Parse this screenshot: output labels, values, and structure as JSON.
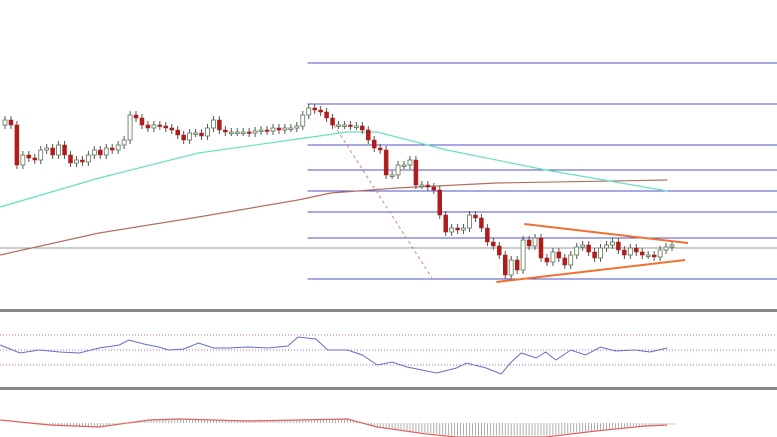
{
  "chart_data": {
    "type": "candlestick",
    "title": "",
    "xlabel": "",
    "ylabel": "",
    "grid": false,
    "colors": {
      "up": "#8fae8f",
      "down": "#b01c1c",
      "wick": "#555555",
      "ma_fast": "#66e0c0",
      "ma_slow": "#b07060",
      "fib": "#5050c8",
      "triangle": "#f07030",
      "fib_trend": "#e08080",
      "reference": "#999999",
      "rsi": "#6a6ac8",
      "rsi_levels": "#c060c0",
      "macd_signal": "#e06060",
      "macd_hist": "#999999",
      "separator": "#888888"
    },
    "price_range": [
      0,
      300
    ],
    "closes": [
      180,
      175,
      135,
      145,
      142,
      140,
      150,
      152,
      145,
      155,
      145,
      137,
      140,
      138,
      145,
      150,
      145,
      152,
      150,
      155,
      160,
      185,
      182,
      175,
      172,
      175,
      174,
      172,
      170,
      165,
      160,
      167,
      167,
      164,
      172,
      180,
      170,
      168,
      168,
      168,
      168,
      167,
      169,
      170,
      169,
      172,
      170,
      172,
      172,
      174,
      185,
      192,
      190,
      188,
      182,
      175,
      175,
      175,
      174,
      174,
      170,
      160,
      152,
      150,
      125,
      125,
      135,
      135,
      140,
      115,
      115,
      113,
      110,
      85,
      68,
      72,
      70,
      72,
      85,
      82,
      72,
      58,
      54,
      45,
      25,
      40,
      30,
      60,
      54,
      62,
      42,
      38,
      48,
      42,
      35,
      45,
      53,
      55,
      48,
      42,
      52,
      55,
      58,
      50,
      45,
      52,
      48,
      45,
      45,
      43,
      50,
      53,
      55
    ],
    "ma_fast": [
      [
        -0.8,
        93
      ],
      [
        15.8,
        122
      ],
      [
        32.5,
        147
      ],
      [
        49.2,
        161
      ],
      [
        57.5,
        168
      ],
      [
        62.5,
        168
      ],
      [
        74.2,
        150
      ],
      [
        90.8,
        130
      ],
      [
        102.5,
        118
      ],
      [
        111.2,
        109
      ]
    ],
    "ma_slow": [
      [
        -0.8,
        45
      ],
      [
        15.8,
        67
      ],
      [
        32.5,
        83
      ],
      [
        49.2,
        100
      ],
      [
        54.7,
        107
      ],
      [
        65.8,
        112
      ],
      [
        82.5,
        117
      ],
      [
        111.2,
        120
      ]
    ],
    "fib_levels": [
      237,
      196,
      155,
      130,
      109,
      88,
      62,
      21
    ],
    "fib_start_index": 50.8,
    "reference_level": 52,
    "fib_trend": [
      [
        54.7,
        180
      ],
      [
        71.7,
        22
      ]
    ],
    "triangle_upper": [
      [
        87.2,
        76
      ],
      [
        114.7,
        57
      ]
    ],
    "triangle_lower": [
      [
        82.5,
        18
      ],
      [
        114.2,
        40
      ]
    ],
    "rsi": {
      "range": [
        0,
        100
      ],
      "levels": [
        70,
        50,
        30
      ],
      "points": [
        [
          -0.8,
          56.7
        ],
        [
          2.5,
          46
        ],
        [
          5.8,
          50
        ],
        [
          9.2,
          47.3
        ],
        [
          12.5,
          46
        ],
        [
          15.8,
          52.7
        ],
        [
          19.2,
          56.7
        ],
        [
          20.8,
          63.3
        ],
        [
          23.3,
          58
        ],
        [
          25.8,
          54
        ],
        [
          27.5,
          50
        ],
        [
          30,
          51.3
        ],
        [
          32.5,
          59.3
        ],
        [
          35,
          52.7
        ],
        [
          37.5,
          52.7
        ],
        [
          40.8,
          54
        ],
        [
          44.2,
          52.7
        ],
        [
          47.5,
          55.3
        ],
        [
          49.2,
          67.3
        ],
        [
          52.2,
          64.7
        ],
        [
          54.2,
          50
        ],
        [
          57.5,
          50
        ],
        [
          60,
          43.3
        ],
        [
          62.5,
          30
        ],
        [
          65,
          34
        ],
        [
          67.5,
          27.3
        ],
        [
          70.8,
          22
        ],
        [
          72.5,
          19.3
        ],
        [
          75.8,
          26
        ],
        [
          77.5,
          32.7
        ],
        [
          80.8,
          26
        ],
        [
          83.3,
          18
        ],
        [
          85,
          34
        ],
        [
          86.7,
          46
        ],
        [
          89.2,
          39.3
        ],
        [
          90.8,
          47.3
        ],
        [
          92.5,
          36.7
        ],
        [
          95,
          50
        ],
        [
          97.5,
          43.3
        ],
        [
          100,
          54
        ],
        [
          102.5,
          48.7
        ],
        [
          105.8,
          50
        ],
        [
          108.3,
          47.3
        ],
        [
          111.2,
          52.7
        ]
      ]
    },
    "macd": {
      "signal": [
        [
          -0.8,
          0.3
        ],
        [
          7.5,
          -0.2
        ],
        [
          15.8,
          -0.4
        ],
        [
          24.2,
          0.3
        ],
        [
          29.2,
          0.4
        ],
        [
          40.8,
          0.2
        ],
        [
          49.2,
          0.3
        ],
        [
          57.5,
          0.4
        ],
        [
          62.5,
          -0.4
        ],
        [
          70.8,
          -1.1
        ],
        [
          75.8,
          -1.4
        ],
        [
          90.8,
          -1.4
        ],
        [
          99.2,
          -0.8
        ],
        [
          107.5,
          -0.3
        ],
        [
          111.2,
          -0.2
        ]
      ],
      "hist_start_index": 4
    }
  }
}
